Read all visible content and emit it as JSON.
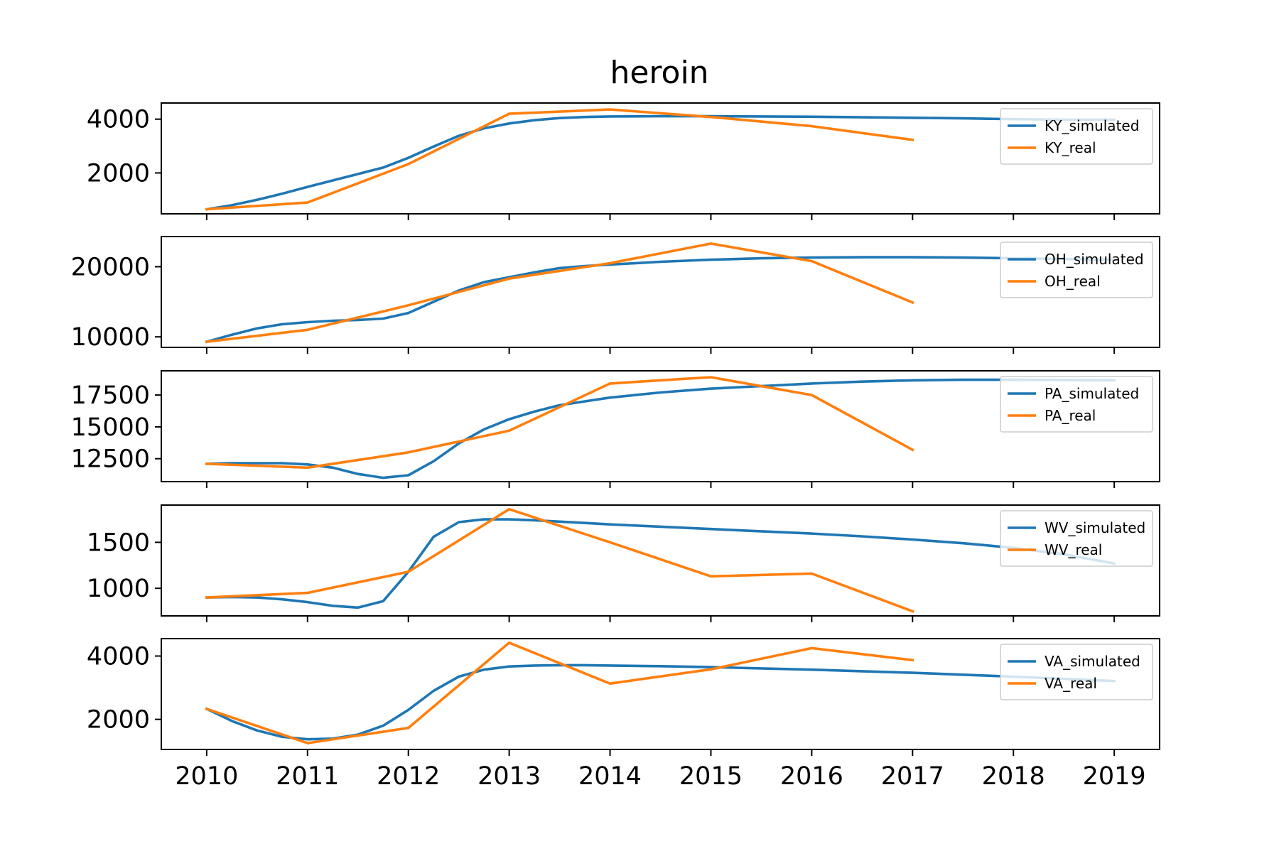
{
  "chart_data": {
    "type": "line",
    "title": "heroin",
    "x_ticks": [
      "2010",
      "2011",
      "2012",
      "2013",
      "2014",
      "2015",
      "2016",
      "2017",
      "2018",
      "2019"
    ],
    "xlim": [
      2009.55,
      2019.45
    ],
    "colors": {
      "simulated": "#1f77b4",
      "real": "#ff7f0e"
    },
    "legend_position": "top-right",
    "panels": [
      {
        "id": "ky",
        "ylim": [
          480,
          4600
        ],
        "y_ticks": [
          2000,
          4000
        ],
        "series": [
          {
            "name": "KY_simulated",
            "kind": "simulated",
            "x": [
              2010,
              2010.25,
              2010.5,
              2010.75,
              2011,
              2011.25,
              2011.5,
              2011.75,
              2012,
              2012.25,
              2012.5,
              2012.75,
              2013,
              2013.25,
              2013.5,
              2013.75,
              2014,
              2014.5,
              2015,
              2015.5,
              2016,
              2016.5,
              2017,
              2017.5,
              2018,
              2018.5,
              2019
            ],
            "values": [
              650,
              800,
              1000,
              1230,
              1480,
              1720,
              1960,
              2200,
              2560,
              2980,
              3380,
              3660,
              3840,
              3960,
              4040,
              4080,
              4100,
              4110,
              4110,
              4100,
              4090,
              4070,
              4050,
              4030,
              4000,
              3980,
              3980
            ]
          },
          {
            "name": "KY_real",
            "kind": "real",
            "x": [
              2010,
              2011,
              2012,
              2013,
              2014,
              2015,
              2016,
              2017
            ],
            "values": [
              650,
              900,
              2330,
              4200,
              4360,
              4080,
              3740,
              3230
            ]
          }
        ]
      },
      {
        "id": "oh",
        "ylim": [
          8500,
          24300
        ],
        "y_ticks": [
          10000,
          20000
        ],
        "series": [
          {
            "name": "OH_simulated",
            "kind": "simulated",
            "x": [
              2010,
              2010.25,
              2010.5,
              2010.75,
              2011,
              2011.25,
              2011.5,
              2011.75,
              2012,
              2012.25,
              2012.5,
              2012.75,
              2013,
              2013.25,
              2013.5,
              2013.75,
              2014,
              2014.5,
              2015,
              2015.5,
              2016,
              2016.5,
              2017,
              2017.5,
              2018,
              2018.5,
              2019
            ],
            "values": [
              9300,
              10300,
              11200,
              11800,
              12100,
              12300,
              12400,
              12600,
              13400,
              15000,
              16600,
              17800,
              18500,
              19200,
              19800,
              20100,
              20300,
              20700,
              21000,
              21200,
              21300,
              21350,
              21350,
              21300,
              21200,
              21100,
              21000
            ]
          },
          {
            "name": "OH_real",
            "kind": "real",
            "x": [
              2010,
              2011,
              2012,
              2013,
              2014,
              2015,
              2016,
              2017
            ],
            "values": [
              9300,
              11000,
              14500,
              18300,
              20500,
              23300,
              20800,
              14900
            ]
          }
        ]
      },
      {
        "id": "pa",
        "ylim": [
          10700,
          19400
        ],
        "y_ticks": [
          12500,
          15000,
          17500
        ],
        "series": [
          {
            "name": "PA_simulated",
            "kind": "simulated",
            "x": [
              2010,
              2010.25,
              2010.5,
              2010.75,
              2011,
              2011.25,
              2011.5,
              2011.75,
              2012,
              2012.25,
              2012.5,
              2012.75,
              2013,
              2013.25,
              2013.5,
              2013.75,
              2014,
              2014.5,
              2015,
              2015.5,
              2016,
              2016.5,
              2017,
              2017.5,
              2018,
              2018.5,
              2019
            ],
            "values": [
              12100,
              12150,
              12150,
              12150,
              12050,
              11800,
              11300,
              11000,
              11200,
              12300,
              13700,
              14800,
              15600,
              16200,
              16700,
              17000,
              17300,
              17700,
              18000,
              18200,
              18400,
              18550,
              18650,
              18700,
              18700,
              18680,
              18660
            ]
          },
          {
            "name": "PA_real",
            "kind": "real",
            "x": [
              2010,
              2011,
              2012,
              2013,
              2014,
              2015,
              2016,
              2017
            ],
            "values": [
              12100,
              11800,
              13000,
              14700,
              18400,
              18900,
              17500,
              13200
            ]
          }
        ]
      },
      {
        "id": "wv",
        "ylim": [
          700,
          1905
        ],
        "y_ticks": [
          1000,
          1500
        ],
        "series": [
          {
            "name": "WV_simulated",
            "kind": "simulated",
            "x": [
              2010,
              2010.25,
              2010.5,
              2010.75,
              2011,
              2011.25,
              2011.5,
              2011.75,
              2012,
              2012.25,
              2012.5,
              2012.75,
              2013,
              2013.25,
              2013.5,
              2013.75,
              2014,
              2014.5,
              2015,
              2015.5,
              2016,
              2016.5,
              2017,
              2017.5,
              2018,
              2018.5,
              2019
            ],
            "values": [
              900,
              905,
              900,
              880,
              850,
              810,
              790,
              860,
              1180,
              1560,
              1720,
              1750,
              1750,
              1740,
              1725,
              1710,
              1695,
              1670,
              1645,
              1620,
              1595,
              1565,
              1530,
              1490,
              1440,
              1370,
              1270
            ]
          },
          {
            "name": "WV_real",
            "kind": "real",
            "x": [
              2010,
              2011,
              2012,
              2013,
              2014,
              2015,
              2016,
              2017
            ],
            "values": [
              900,
              950,
              1180,
              1860,
              1500,
              1130,
              1160,
              750
            ]
          }
        ]
      },
      {
        "id": "va",
        "ylim": [
          1050,
          4550
        ],
        "y_ticks": [
          2000,
          4000
        ],
        "series": [
          {
            "name": "VA_simulated",
            "kind": "simulated",
            "x": [
              2010,
              2010.25,
              2010.5,
              2010.75,
              2011,
              2011.25,
              2011.5,
              2011.75,
              2012,
              2012.25,
              2012.5,
              2012.75,
              2013,
              2013.25,
              2013.5,
              2013.75,
              2014,
              2014.5,
              2015,
              2015.5,
              2016,
              2016.5,
              2017,
              2017.5,
              2018,
              2018.5,
              2019
            ],
            "values": [
              2330,
              1950,
              1650,
              1450,
              1370,
              1390,
              1520,
              1800,
              2300,
              2900,
              3350,
              3570,
              3670,
              3700,
              3710,
              3710,
              3700,
              3680,
              3650,
              3610,
              3570,
              3520,
              3470,
              3410,
              3350,
              3280,
              3210
            ]
          },
          {
            "name": "VA_real",
            "kind": "real",
            "x": [
              2010,
              2011,
              2012,
              2013,
              2014,
              2015,
              2016,
              2017
            ],
            "values": [
              2330,
              1250,
              1730,
              4420,
              3130,
              3580,
              4250,
              3870
            ]
          }
        ]
      }
    ]
  }
}
